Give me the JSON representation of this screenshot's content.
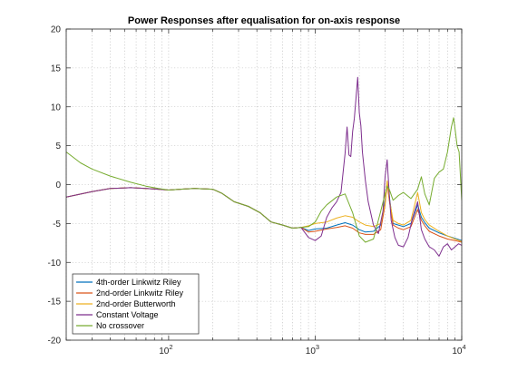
{
  "chart_data": {
    "type": "line",
    "title": "Power Responses after equalisation for on-axis response",
    "xlabel": "",
    "ylabel": "",
    "xscale": "log",
    "xlim": [
      20,
      10000
    ],
    "ylim": [
      -20,
      20
    ],
    "x_major_ticks": [
      {
        "value": 100,
        "base": "10",
        "exp": "2"
      },
      {
        "value": 1000,
        "base": "10",
        "exp": "3"
      },
      {
        "value": 10000,
        "base": "10",
        "exp": "4"
      }
    ],
    "y_ticks": [
      20,
      15,
      10,
      5,
      0,
      -5,
      -10,
      -15,
      -20
    ],
    "grid": "dotted, major and minor",
    "legend_position": "bottom-left",
    "series": [
      {
        "name": "4th-order Linkwitz Riley",
        "color": "#0072BD",
        "x": [
          20,
          30,
          40,
          55,
          70,
          85,
          100,
          120,
          150,
          200,
          230,
          280,
          350,
          420,
          500,
          600,
          700,
          800,
          900,
          1000,
          1200,
          1400,
          1600,
          1800,
          2000,
          2200,
          2500,
          2800,
          3000,
          3100,
          3200,
          3400,
          3700,
          4000,
          4500,
          5000,
          5300,
          5600,
          6000,
          7000,
          8000,
          9000,
          10000
        ],
        "y": [
          -1.6,
          -0.9,
          -0.5,
          -0.4,
          -0.5,
          -0.6,
          -0.7,
          -0.6,
          -0.5,
          -0.6,
          -1.1,
          -2.2,
          -2.8,
          -3.6,
          -4.8,
          -5.2,
          -5.6,
          -5.5,
          -5.9,
          -5.7,
          -5.6,
          -5.2,
          -4.9,
          -5.2,
          -5.8,
          -6.1,
          -6.0,
          -5.2,
          -2.0,
          0.3,
          -1.5,
          -5.0,
          -5.2,
          -5.4,
          -5.0,
          -2.6,
          -4.2,
          -4.9,
          -5.6,
          -6.2,
          -6.6,
          -6.9,
          -7.2
        ]
      },
      {
        "name": "2nd-order Linkwitz Riley",
        "color": "#D95319",
        "x": [
          20,
          30,
          40,
          55,
          70,
          85,
          100,
          120,
          150,
          200,
          230,
          280,
          350,
          420,
          500,
          600,
          700,
          800,
          900,
          1000,
          1200,
          1400,
          1600,
          1800,
          2000,
          2200,
          2500,
          2800,
          3000,
          3100,
          3200,
          3400,
          3700,
          4000,
          4500,
          5000,
          5300,
          5600,
          6000,
          7000,
          8000,
          9000,
          10000
        ],
        "y": [
          -1.6,
          -0.9,
          -0.5,
          -0.4,
          -0.5,
          -0.6,
          -0.7,
          -0.6,
          -0.5,
          -0.6,
          -1.1,
          -2.2,
          -2.8,
          -3.6,
          -4.8,
          -5.2,
          -5.6,
          -5.5,
          -6.1,
          -6.0,
          -5.7,
          -5.5,
          -5.3,
          -5.6,
          -6.2,
          -6.4,
          -6.4,
          -5.8,
          -2.6,
          0.1,
          -2.0,
          -5.2,
          -5.6,
          -5.8,
          -5.4,
          -3.2,
          -4.6,
          -5.3,
          -6.0,
          -6.6,
          -7.0,
          -7.2,
          -7.4
        ]
      },
      {
        "name": "2nd-order Butterworth",
        "color": "#EDB120",
        "x": [
          20,
          30,
          40,
          55,
          70,
          85,
          100,
          120,
          150,
          200,
          230,
          280,
          350,
          420,
          500,
          600,
          700,
          800,
          900,
          1000,
          1200,
          1400,
          1600,
          1800,
          2000,
          2200,
          2500,
          2800,
          3000,
          3100,
          3200,
          3400,
          3700,
          4000,
          4500,
          5000,
          5300,
          5600,
          6000,
          7000,
          8000,
          9000,
          10000
        ],
        "y": [
          -1.6,
          -0.9,
          -0.5,
          -0.4,
          -0.5,
          -0.6,
          -0.7,
          -0.6,
          -0.5,
          -0.6,
          -1.1,
          -2.2,
          -2.8,
          -3.6,
          -4.8,
          -5.2,
          -5.6,
          -5.5,
          -5.3,
          -5.0,
          -4.8,
          -4.3,
          -4.0,
          -4.2,
          -4.8,
          -5.2,
          -5.4,
          -5.0,
          -2.4,
          0.5,
          -1.8,
          -4.6,
          -5.0,
          -5.2,
          -4.6,
          -1.0,
          -3.6,
          -4.5,
          -5.2,
          -6.0,
          -6.6,
          -7.0,
          -7.3
        ]
      },
      {
        "name": "Constant Voltage",
        "color": "#7E2F8E",
        "x": [
          20,
          30,
          40,
          55,
          70,
          85,
          100,
          120,
          150,
          200,
          230,
          280,
          350,
          420,
          500,
          600,
          700,
          800,
          900,
          1000,
          1100,
          1200,
          1300,
          1400,
          1500,
          1600,
          1650,
          1700,
          1750,
          1800,
          1850,
          1900,
          1950,
          2000,
          2050,
          2100,
          2200,
          2300,
          2500,
          2700,
          2900,
          3000,
          3100,
          3200,
          3300,
          3500,
          3700,
          4000,
          4300,
          4600,
          5000,
          5300,
          5600,
          6000,
          6500,
          7000,
          7500,
          8000,
          8500,
          9000,
          9500,
          10000
        ],
        "y": [
          -1.6,
          -0.9,
          -0.5,
          -0.4,
          -0.5,
          -0.6,
          -0.7,
          -0.6,
          -0.5,
          -0.6,
          -1.1,
          -2.2,
          -2.8,
          -3.6,
          -4.8,
          -5.2,
          -5.6,
          -5.5,
          -6.8,
          -7.2,
          -6.6,
          -4.2,
          -3.0,
          -2.2,
          -1.0,
          4.0,
          7.4,
          3.8,
          3.6,
          6.8,
          8.5,
          11.2,
          13.8,
          9.2,
          7.6,
          4.2,
          0.5,
          -2.2,
          -5.2,
          -6.3,
          -3.4,
          1.0,
          3.2,
          -1.2,
          -4.6,
          -6.8,
          -7.8,
          -8.0,
          -6.8,
          -4.4,
          -2.2,
          -5.8,
          -7.0,
          -8.0,
          -8.4,
          -9.2,
          -8.0,
          -7.6,
          -8.4,
          -8.0,
          -7.6,
          -7.8
        ]
      },
      {
        "name": "No crossover",
        "color": "#77AC30",
        "x": [
          20,
          25,
          30,
          40,
          55,
          70,
          85,
          100,
          120,
          150,
          200,
          230,
          280,
          350,
          420,
          500,
          600,
          700,
          800,
          900,
          1000,
          1100,
          1200,
          1400,
          1600,
          1800,
          2000,
          2200,
          2500,
          2800,
          3000,
          3100,
          3200,
          3400,
          3700,
          4000,
          4500,
          5000,
          5300,
          5600,
          6000,
          6500,
          7000,
          7500,
          8000,
          8500,
          8800,
          9000,
          9300,
          9600,
          10000
        ],
        "y": [
          4.2,
          2.8,
          2.0,
          1.1,
          0.3,
          -0.2,
          -0.5,
          -0.7,
          -0.6,
          -0.5,
          -0.6,
          -1.1,
          -2.2,
          -2.8,
          -3.6,
          -4.8,
          -5.2,
          -5.6,
          -5.5,
          -5.4,
          -4.8,
          -3.4,
          -2.6,
          -1.6,
          -1.2,
          -3.6,
          -6.6,
          -7.4,
          -7.0,
          -3.4,
          -1.2,
          -0.2,
          -0.6,
          -2.0,
          -1.4,
          -1.0,
          -1.8,
          -0.6,
          1.0,
          -1.2,
          -2.6,
          0.8,
          1.6,
          2.0,
          4.2,
          7.4,
          8.6,
          7.2,
          5.0,
          4.2,
          -2.0
        ]
      }
    ]
  }
}
